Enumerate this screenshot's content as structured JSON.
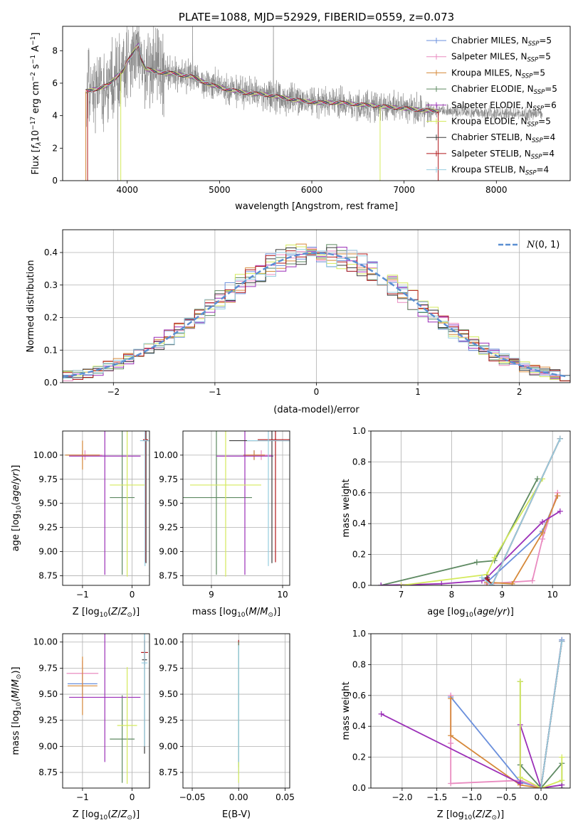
{
  "colors": {
    "Chabrier MILES": "#6a8fdc",
    "Salpeter MILES": "#e98bc0",
    "Kroupa MILES": "#d6893a",
    "Chabrier ELODIE": "#5e8a62",
    "Salpeter ELODIE": "#9b2fb8",
    "Kroupa ELODIE": "#d4ea5c",
    "Chabrier STELIB": "#3b3b3b",
    "Salpeter STELIB": "#b0171a",
    "Kroupa STELIB": "#96cde0",
    "normal": "#5b8fd2",
    "data": "#7f7f7f"
  },
  "chart_data": [
    {
      "id": "spectrum",
      "type": "line",
      "title": "PLATE=1088, MJD=52929, FIBERID=0559, z=0.073",
      "xlabel": "wavelength [Angstrom, rest frame]",
      "ylabel": "Flux [f_λ10^-17 erg cm^-2 s^-1 A^-1]",
      "xlim": [
        3300,
        8800
      ],
      "ylim": [
        0,
        9.5
      ],
      "xticks": [
        4000,
        5000,
        6000,
        7000,
        8000
      ],
      "yticks": [
        0,
        2,
        4,
        6,
        8
      ],
      "legend_position": "top-right",
      "legend": [
        {
          "name": "Chabrier MILES",
          "nssp": "5"
        },
        {
          "name": "Salpeter MILES",
          "nssp": "5"
        },
        {
          "name": "Kroupa MILES",
          "nssp": "5"
        },
        {
          "name": "Chabrier ELODIE",
          "nssp": "5"
        },
        {
          "name": "Salpeter ELODIE",
          "nssp": "6"
        },
        {
          "name": "Kroupa ELODIE",
          "nssp": "5"
        },
        {
          "name": "Chabrier STELIB",
          "nssp": "4"
        },
        {
          "name": "Salpeter STELIB",
          "nssp": "4"
        },
        {
          "name": "Kroupa STELIB",
          "nssp": "4"
        }
      ],
      "continuum": {
        "x": [
          3560,
          3700,
          3800,
          3900,
          3960,
          4000,
          4100,
          4200,
          4300,
          4500,
          4700,
          4900,
          5100,
          5300,
          5500,
          5700,
          5900,
          6100,
          6300,
          6500,
          6700,
          6900,
          7100,
          7300,
          7500,
          7700,
          7900,
          8100,
          8300,
          8500
        ],
        "y": [
          5.5,
          5.7,
          5.9,
          6.5,
          6.8,
          7.3,
          8.2,
          6.9,
          6.7,
          6.6,
          6.4,
          5.9,
          5.6,
          5.4,
          5.3,
          5.1,
          4.9,
          4.8,
          4.8,
          4.7,
          4.6,
          4.5,
          4.4,
          4.3,
          4.25,
          4.2,
          4.15,
          4.15,
          4.1,
          4.1
        ]
      }
    },
    {
      "id": "residuals",
      "type": "line",
      "xlabel": "(data-model)/error",
      "ylabel": "Normed distribution",
      "xlim": [
        -2.5,
        2.5
      ],
      "ylim": [
        0,
        0.47
      ],
      "xticks": [
        -2,
        -1,
        0,
        1,
        2
      ],
      "yticks": [
        0.0,
        0.1,
        0.2,
        0.3,
        0.4
      ],
      "legend_position": "top-right",
      "legend": [
        {
          "name": "N(0,1)"
        }
      ],
      "normal": {
        "mean": 0,
        "sigma": 1
      }
    },
    {
      "id": "age_vs_Z",
      "type": "scatter",
      "xlabel": "Z [log10(Z/Z_sun)]",
      "ylabel": "age [log10(age/yr)]",
      "xlim": [
        -1.4,
        0.35
      ],
      "ylim": [
        8.65,
        10.25
      ],
      "xticks": [
        -1,
        0
      ],
      "yticks": [
        8.75,
        9.0,
        9.25,
        9.5,
        9.75,
        10.0
      ],
      "points": [
        {
          "series": "Chabrier MILES",
          "x": -1.0,
          "y": 10.0,
          "xerr": 0.35,
          "yerr": 0.05
        },
        {
          "series": "Salpeter MILES",
          "x": -0.95,
          "y": 10.0,
          "xerr": 0.35,
          "yerr": 0.05
        },
        {
          "series": "Kroupa MILES",
          "x": -1.0,
          "y": 10.0,
          "xerr": 0.35,
          "yerr": 0.15
        },
        {
          "series": "Chabrier ELODIE",
          "x": -0.2,
          "y": 9.56,
          "xerr": 0.25,
          "yerr": 0.8
        },
        {
          "series": "Salpeter ELODIE",
          "x": -0.55,
          "y": 9.99,
          "xerr": 0.72,
          "yerr": 1.23
        },
        {
          "series": "Kroupa ELODIE",
          "x": -0.1,
          "y": 9.69,
          "xerr": 0.35,
          "yerr": 0.95
        },
        {
          "series": "Chabrier STELIB",
          "x": 0.28,
          "y": 10.15,
          "xerr": 0.05,
          "yerr": 1.27
        },
        {
          "series": "Salpeter STELIB",
          "x": 0.27,
          "y": 10.16,
          "xerr": 0.05,
          "yerr": 1.27
        },
        {
          "series": "Kroupa STELIB",
          "x": 0.26,
          "y": 10.15,
          "xerr": 0.1,
          "yerr": 1.3
        }
      ]
    },
    {
      "id": "age_vs_mass",
      "type": "scatter",
      "xlabel": "mass [log10(M/M_sun)]",
      "ylabel": "",
      "xlim": [
        8.6,
        10.1
      ],
      "ylim": [
        8.65,
        10.25
      ],
      "xticks": [
        9,
        10
      ],
      "yticks": [
        8.75,
        9.0,
        9.25,
        9.5,
        9.75,
        10.0
      ],
      "points": [
        {
          "series": "Chabrier MILES",
          "x": 9.6,
          "y": 10.0,
          "xerr": 0.15,
          "yerr": 0.05
        },
        {
          "series": "Salpeter MILES",
          "x": 9.7,
          "y": 10.0,
          "xerr": 0.15,
          "yerr": 0.05
        },
        {
          "series": "Kroupa MILES",
          "x": 9.6,
          "y": 10.0,
          "xerr": 0.15,
          "yerr": 0.05
        },
        {
          "series": "Chabrier ELODIE",
          "x": 9.07,
          "y": 9.56,
          "xerr": 0.5,
          "yerr": 0.8
        },
        {
          "series": "Salpeter ELODIE",
          "x": 9.47,
          "y": 9.99,
          "xerr": 0.4,
          "yerr": 1.23
        },
        {
          "series": "Kroupa ELODIE",
          "x": 9.2,
          "y": 9.69,
          "xerr": 0.5,
          "yerr": 0.95
        },
        {
          "series": "Chabrier STELIB",
          "x": 9.85,
          "y": 10.15,
          "xerr": 0.6,
          "yerr": 1.27
        },
        {
          "series": "Salpeter STELIB",
          "x": 9.9,
          "y": 10.16,
          "xerr": 0.25,
          "yerr": 1.27
        },
        {
          "series": "Kroupa STELIB",
          "x": 9.8,
          "y": 10.15,
          "xerr": 0.3,
          "yerr": 1.3
        }
      ]
    },
    {
      "id": "massweight_vs_age",
      "type": "line",
      "xlabel": "age [log10(age/yr)]",
      "ylabel": "mass weight",
      "xlim": [
        6.4,
        10.35
      ],
      "ylim": [
        0,
        1.0
      ],
      "xticks": [
        7,
        8,
        9,
        10
      ],
      "yticks": [
        0.0,
        0.2,
        0.4,
        0.6,
        0.8,
        1.0
      ],
      "series": [
        {
          "name": "Chabrier MILES",
          "x": [
            8.7,
            9.8,
            10.1
          ],
          "y": [
            0.02,
            0.35,
            0.58
          ]
        },
        {
          "name": "Salpeter MILES",
          "x": [
            8.7,
            9.6,
            9.8,
            10.1
          ],
          "y": [
            0.01,
            0.03,
            0.3,
            0.6
          ]
        },
        {
          "name": "Kroupa MILES",
          "x": [
            8.7,
            9.2,
            9.8,
            10.1
          ],
          "y": [
            0.02,
            0.01,
            0.34,
            0.58
          ]
        },
        {
          "name": "Chabrier ELODIE",
          "x": [
            6.6,
            8.5,
            8.85,
            9.7
          ],
          "y": [
            0.0,
            0.15,
            0.16,
            0.69
          ]
        },
        {
          "name": "Salpeter ELODIE",
          "x": [
            6.6,
            7.8,
            8.6,
            8.7,
            9.8,
            10.15
          ],
          "y": [
            0.0,
            0.01,
            0.03,
            0.05,
            0.41,
            0.48
          ]
        },
        {
          "name": "Kroupa ELODIE",
          "x": [
            7.0,
            8.7,
            8.85,
            9.8
          ],
          "y": [
            0.0,
            0.07,
            0.18,
            0.69
          ]
        },
        {
          "name": "Chabrier STELIB",
          "x": [
            8.7,
            8.8,
            10.15
          ],
          "y": [
            0.05,
            0.0,
            0.95
          ]
        },
        {
          "name": "Salpeter STELIB",
          "x": [
            8.7,
            8.8,
            10.15
          ],
          "y": [
            0.04,
            0.0,
            0.95
          ]
        },
        {
          "name": "Kroupa STELIB",
          "x": [
            8.6,
            8.8,
            10.15
          ],
          "y": [
            0.05,
            0.0,
            0.95
          ]
        }
      ]
    },
    {
      "id": "mass_vs_Z",
      "type": "scatter",
      "xlabel": "Z [log10(Z/Z_sun)]",
      "ylabel": "mass [log10(M/M_sun)]",
      "xlim": [
        -1.4,
        0.35
      ],
      "ylim": [
        8.6,
        10.08
      ],
      "xticks": [
        -1,
        0
      ],
      "yticks": [
        8.75,
        9.0,
        9.25,
        9.5,
        9.75,
        10.0
      ],
      "points": [
        {
          "series": "Chabrier MILES",
          "x": -1.0,
          "y": 9.6,
          "xerr": 0.3,
          "yerr": 0.1
        },
        {
          "series": "Salpeter MILES",
          "x": -1.0,
          "y": 9.7,
          "xerr": 0.32,
          "yerr": 0.12
        },
        {
          "series": "Kroupa MILES",
          "x": -1.0,
          "y": 9.58,
          "xerr": 0.3,
          "yerr": 0.28
        },
        {
          "series": "Chabrier ELODIE",
          "x": -0.2,
          "y": 9.07,
          "xerr": 0.25,
          "yerr": 0.42
        },
        {
          "series": "Salpeter ELODIE",
          "x": -0.55,
          "y": 9.47,
          "xerr": 0.72,
          "yerr": 0.62
        },
        {
          "series": "Kroupa ELODIE",
          "x": -0.1,
          "y": 9.2,
          "xerr": 0.2,
          "yerr": 0.56
        },
        {
          "series": "Chabrier STELIB",
          "x": 0.25,
          "y": 9.83,
          "xerr": 0.05,
          "yerr": 0.9
        },
        {
          "series": "Salpeter STELIB",
          "x": 0.25,
          "y": 9.9,
          "xerr": 0.07,
          "yerr": 0.12
        },
        {
          "series": "Kroupa STELIB",
          "x": 0.25,
          "y": 9.8,
          "xerr": 0.06,
          "yerr": 0.8
        }
      ]
    },
    {
      "id": "ebv",
      "type": "scatter",
      "xlabel": "E(B-V)",
      "ylabel": "",
      "xlim": [
        -0.06,
        0.055
      ],
      "ylim": [
        8.6,
        10.08
      ],
      "xticks": [
        -0.05,
        0.0,
        0.05
      ],
      "yticks": [
        8.75,
        9.0,
        9.25,
        9.5,
        9.75,
        10.0
      ],
      "points": [
        {
          "series": "Salpeter STELIB",
          "x": 0.0,
          "y": 9.99,
          "yerr": 0.03
        },
        {
          "series": "Chabrier ELODIE",
          "x": 0.0,
          "y": 9.4,
          "yerr": 0.6
        },
        {
          "series": "Kroupa STELIB",
          "x": 0.0,
          "y": 9.35,
          "yerr": 0.62
        },
        {
          "series": "Kroupa ELODIE",
          "x": 0.0,
          "y": 8.75,
          "yerr": 0.1
        }
      ]
    },
    {
      "id": "massweight_vs_Z",
      "type": "line",
      "xlabel": "Z [log10(Z/Z_sun)]",
      "ylabel": "mass weight",
      "xlim": [
        -2.45,
        0.42
      ],
      "ylim": [
        0,
        1.0
      ],
      "xticks": [
        -2.0,
        -1.5,
        -1.0,
        -0.5,
        0.0
      ],
      "yticks": [
        0.0,
        0.2,
        0.4,
        0.6,
        0.8,
        1.0
      ],
      "series": [
        {
          "name": "Chabrier MILES",
          "x": [
            -1.3,
            -0.3,
            0.0,
            0.3
          ],
          "y": [
            0.59,
            0.04,
            0.0,
            0.96
          ]
        },
        {
          "name": "Salpeter MILES",
          "x": [
            -1.3,
            -1.3,
            -1.3,
            -0.3,
            0.0,
            0.3
          ],
          "y": [
            0.6,
            0.29,
            0.03,
            0.05,
            0.0,
            0.95
          ]
        },
        {
          "name": "Kroupa MILES",
          "x": [
            -1.3,
            -1.3,
            -0.3,
            0.0
          ],
          "y": [
            0.58,
            0.34,
            0.02,
            0.0
          ]
        },
        {
          "name": "Chabrier ELODIE",
          "x": [
            -0.3,
            -0.3,
            0.0,
            0.3,
            0.3
          ],
          "y": [
            0.69,
            0.15,
            0.0,
            0.16,
            0.0
          ]
        },
        {
          "name": "Salpeter ELODIE",
          "x": [
            -2.3,
            -0.3,
            -0.3,
            0.0,
            0.3
          ],
          "y": [
            0.48,
            0.03,
            0.41,
            0.0,
            0.02
          ]
        },
        {
          "name": "Kroupa ELODIE",
          "x": [
            -0.3,
            -0.3,
            0.0,
            0.3,
            0.3
          ],
          "y": [
            0.69,
            0.07,
            0.0,
            0.05,
            0.2
          ]
        },
        {
          "name": "Chabrier STELIB",
          "x": [
            0.0,
            0.3
          ],
          "y": [
            0.0,
            0.95
          ]
        },
        {
          "name": "Salpeter STELIB",
          "x": [
            0.0,
            0.3
          ],
          "y": [
            0.0,
            0.95
          ]
        },
        {
          "name": "Kroupa STELIB",
          "x": [
            0.0,
            0.3
          ],
          "y": [
            0.0,
            0.95
          ]
        }
      ]
    }
  ]
}
